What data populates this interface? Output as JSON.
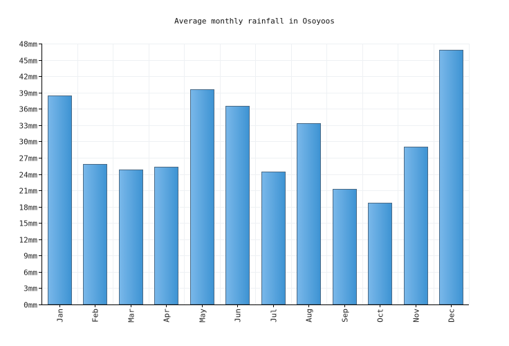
{
  "chart_data": {
    "type": "bar",
    "title": "Average monthly rainfall in Osoyoos",
    "xlabel": "",
    "ylabel": "",
    "unit": "mm",
    "categories": [
      "Jan",
      "Feb",
      "Mar",
      "Apr",
      "May",
      "Jun",
      "Jul",
      "Aug",
      "Sep",
      "Oct",
      "Nov",
      "Dec"
    ],
    "values": [
      38.5,
      25.8,
      24.8,
      25.3,
      39.6,
      36.6,
      24.5,
      33.4,
      21.2,
      18.7,
      29.0,
      46.8
    ],
    "ylim": [
      0,
      48
    ],
    "yticks": [
      0,
      3,
      6,
      9,
      12,
      15,
      18,
      21,
      24,
      27,
      30,
      33,
      36,
      39,
      42,
      45,
      48
    ],
    "ytick_labels": [
      "0mm",
      "3mm",
      "6mm",
      "9mm",
      "12mm",
      "15mm",
      "18mm",
      "21mm",
      "24mm",
      "27mm",
      "30mm",
      "33mm",
      "36mm",
      "39mm",
      "42mm",
      "45mm",
      "48mm"
    ],
    "grid": true,
    "legend": "none",
    "colors": {
      "bar_light": "#7ab8ea",
      "bar_dark": "#3d93d3",
      "bar_stroke": "#4a6a86",
      "grid": "#eef1f4",
      "axis": "#000000"
    }
  }
}
